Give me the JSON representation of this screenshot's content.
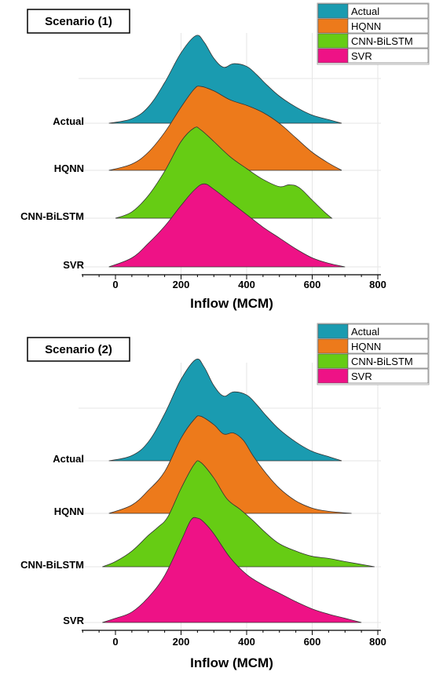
{
  "chart_data": [
    {
      "type": "ridgeline",
      "scenario_label": "Scenario (1)",
      "xlabel": "Inflow (MCM)",
      "xlim": [
        -100,
        800
      ],
      "xticks": [
        0,
        200,
        400,
        600,
        800
      ],
      "legend_position": "top-right",
      "grid": true,
      "series": [
        {
          "name": "Actual",
          "color": "#1a9bb0",
          "x": [
            -20,
            50,
            100,
            150,
            200,
            245,
            270,
            300,
            330,
            360,
            400,
            430,
            460,
            500,
            550,
            600,
            650,
            690
          ],
          "y": [
            0,
            0.05,
            0.18,
            0.45,
            0.78,
            0.97,
            0.9,
            0.72,
            0.62,
            0.66,
            0.63,
            0.54,
            0.43,
            0.3,
            0.18,
            0.09,
            0.04,
            0
          ]
        },
        {
          "name": "HQNN",
          "color": "#ed7a1b",
          "x": [
            -20,
            50,
            100,
            150,
            200,
            240,
            260,
            300,
            350,
            400,
            450,
            500,
            550,
            600,
            650,
            690
          ],
          "y": [
            0,
            0.07,
            0.2,
            0.42,
            0.7,
            0.9,
            0.93,
            0.88,
            0.78,
            0.72,
            0.64,
            0.52,
            0.36,
            0.2,
            0.08,
            0
          ]
        },
        {
          "name": "CNN-BiLSTM",
          "color": "#66cc14",
          "x": [
            0,
            50,
            100,
            150,
            200,
            240,
            260,
            300,
            350,
            400,
            450,
            500,
            530,
            560,
            600,
            640,
            660
          ],
          "y": [
            0,
            0.07,
            0.25,
            0.52,
            0.85,
            1.0,
            0.98,
            0.85,
            0.68,
            0.55,
            0.43,
            0.35,
            0.37,
            0.34,
            0.2,
            0.06,
            0
          ]
        },
        {
          "name": "SVR",
          "color": "#ee1286",
          "x": [
            -20,
            50,
            100,
            150,
            200,
            240,
            270,
            300,
            350,
            400,
            450,
            500,
            550,
            600,
            650,
            700
          ],
          "y": [
            0,
            0.1,
            0.26,
            0.45,
            0.68,
            0.85,
            0.92,
            0.86,
            0.72,
            0.58,
            0.44,
            0.32,
            0.2,
            0.1,
            0.04,
            0
          ]
        }
      ]
    },
    {
      "type": "ridgeline",
      "scenario_label": "Scenario (2)",
      "xlabel": "Inflow (MCM)",
      "xlim": [
        -100,
        800
      ],
      "xticks": [
        0,
        200,
        400,
        600,
        800
      ],
      "legend_position": "top-right",
      "grid": true,
      "series": [
        {
          "name": "Actual",
          "color": "#1a9bb0",
          "x": [
            -20,
            50,
            100,
            150,
            200,
            245,
            270,
            300,
            330,
            360,
            400,
            430,
            460,
            500,
            550,
            600,
            650,
            690
          ],
          "y": [
            0,
            0.05,
            0.18,
            0.45,
            0.78,
            0.97,
            0.9,
            0.72,
            0.62,
            0.66,
            0.63,
            0.54,
            0.43,
            0.3,
            0.18,
            0.09,
            0.04,
            0
          ]
        },
        {
          "name": "HQNN",
          "color": "#ed7a1b",
          "x": [
            -20,
            50,
            100,
            150,
            200,
            240,
            260,
            300,
            330,
            360,
            390,
            420,
            460,
            500,
            550,
            600,
            650,
            720
          ],
          "y": [
            0,
            0.08,
            0.22,
            0.4,
            0.72,
            0.9,
            0.93,
            0.85,
            0.76,
            0.77,
            0.7,
            0.55,
            0.38,
            0.24,
            0.12,
            0.05,
            0.02,
            0
          ]
        },
        {
          "name": "CNN-BiLSTM",
          "color": "#66cc14",
          "x": [
            -40,
            0,
            50,
            100,
            130,
            160,
            200,
            240,
            260,
            300,
            340,
            380,
            420,
            460,
            500,
            550,
            600,
            650,
            700,
            790
          ],
          "y": [
            0,
            0.05,
            0.15,
            0.3,
            0.38,
            0.48,
            0.75,
            0.98,
            1.0,
            0.85,
            0.65,
            0.55,
            0.44,
            0.32,
            0.22,
            0.15,
            0.1,
            0.08,
            0.05,
            0
          ]
        },
        {
          "name": "SVR",
          "color": "#ee1286",
          "x": [
            -40,
            0,
            50,
            100,
            150,
            200,
            230,
            250,
            270,
            300,
            350,
            400,
            450,
            500,
            550,
            600,
            650,
            700,
            750
          ],
          "y": [
            0,
            0.04,
            0.1,
            0.24,
            0.45,
            0.78,
            0.98,
            1.0,
            0.96,
            0.85,
            0.62,
            0.46,
            0.36,
            0.28,
            0.2,
            0.13,
            0.08,
            0.04,
            0
          ]
        }
      ]
    }
  ]
}
